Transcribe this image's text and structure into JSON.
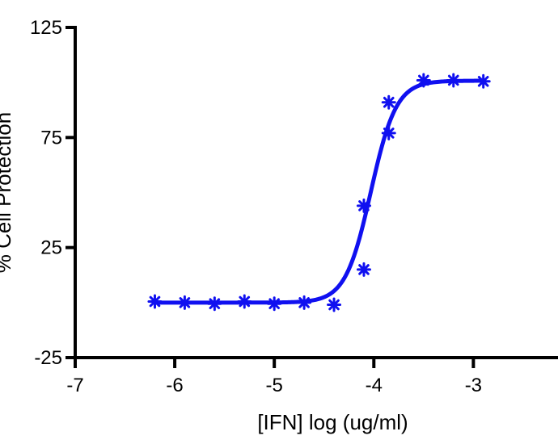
{
  "chart_data": {
    "type": "scatter",
    "title": "",
    "xlabel": "[IFN] log (ug/ml)",
    "ylabel": "% Cell Protection",
    "xlim": [
      -7,
      -2.15
    ],
    "ylim": [
      -25,
      125
    ],
    "xticks": [
      -7,
      -6,
      -5,
      -4,
      -3
    ],
    "yticks": [
      -25,
      25,
      75,
      125
    ],
    "grid": false,
    "legend": "none",
    "colors": {
      "series": "#1010f0",
      "axis": "#000000"
    },
    "marker": "asterisk",
    "series": [
      {
        "points": [
          {
            "x": -6.2,
            "y": 0.5
          },
          {
            "x": -5.9,
            "y": 0
          },
          {
            "x": -5.6,
            "y": -0.5
          },
          {
            "x": -5.3,
            "y": 0.5
          },
          {
            "x": -5.0,
            "y": -0.5
          },
          {
            "x": -4.7,
            "y": 0
          },
          {
            "x": -4.4,
            "y": -1
          },
          {
            "x": -4.1,
            "y": 15
          },
          {
            "x": -4.1,
            "y": 44
          },
          {
            "x": -3.85,
            "y": 77
          },
          {
            "x": -3.85,
            "y": 91
          },
          {
            "x": -3.5,
            "y": 101
          },
          {
            "x": -3.2,
            "y": 101
          },
          {
            "x": -2.9,
            "y": 100.5
          }
        ],
        "fit": {
          "model": "sigmoidal dose-response",
          "bottom": 0,
          "top": 100.8,
          "logEC50": -4.03,
          "hillslope": 3.4,
          "x_range": [
            -6.2,
            -2.9
          ]
        }
      }
    ]
  }
}
